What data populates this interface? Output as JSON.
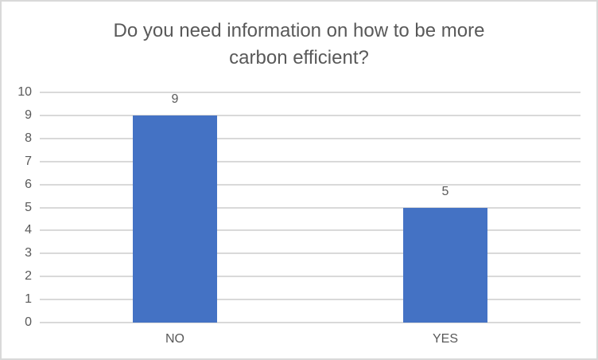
{
  "window": {
    "background": "#FFFFFF",
    "border_color": "#D9D9D9"
  },
  "chart_data": {
    "type": "bar",
    "title": "Do you need information on how to be more carbon efficient?",
    "title_lines": [
      "Do you need information on how to be more",
      "carbon efficient?"
    ],
    "categories": [
      "NO",
      "YES"
    ],
    "values": [
      9,
      5
    ],
    "data_labels": [
      "9",
      "5"
    ],
    "xlabel": "",
    "ylabel": "",
    "ylim": [
      0,
      10
    ],
    "yticks": [
      0,
      1,
      2,
      3,
      4,
      5,
      6,
      7,
      8,
      9,
      10
    ],
    "grid": true,
    "legend": "none",
    "data_label_position": "outside-end",
    "colors": {
      "bar": "#4472C4",
      "text": "#595959",
      "gridline": "#D9D9D9",
      "axis_line": "#D9D9D9"
    }
  }
}
